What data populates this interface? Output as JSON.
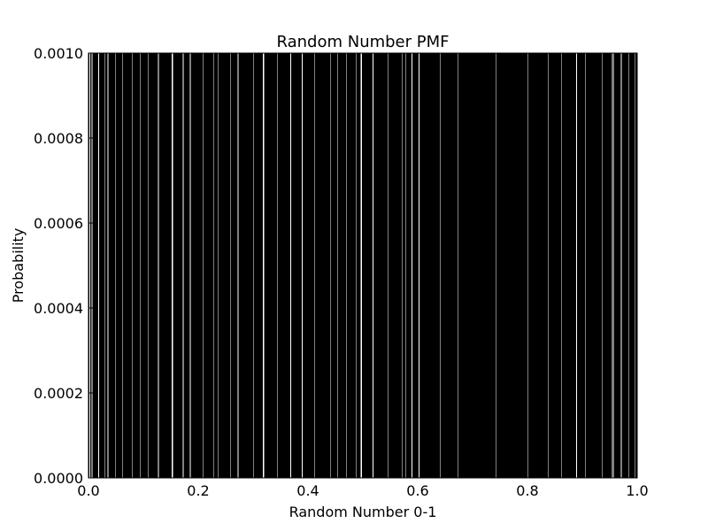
{
  "chart_data": {
    "type": "bar",
    "title": "Random Number PMF",
    "xlabel": "Random Number 0-1",
    "ylabel": "Probability",
    "xlim": [
      0.0,
      1.0
    ],
    "ylim": [
      0.0,
      0.001
    ],
    "x_ticks": [
      "0.0",
      "0.2",
      "0.4",
      "0.6",
      "0.8",
      "1.0"
    ],
    "y_ticks": [
      "0.0000",
      "0.0002",
      "0.0004",
      "0.0006",
      "0.0008",
      "0.0010"
    ],
    "grid": false,
    "bar_color": "#000000",
    "bar_value": 0.001,
    "gap_value": 0.0,
    "empty_x": [
      0.002,
      0.006,
      0.018,
      0.029,
      0.035,
      0.048,
      0.061,
      0.079,
      0.094,
      0.109,
      0.127,
      0.152,
      0.153,
      0.172,
      0.185,
      0.209,
      0.228,
      0.236,
      0.259,
      0.272,
      0.301,
      0.318,
      0.319,
      0.344,
      0.368,
      0.389,
      0.412,
      0.441,
      0.454,
      0.469,
      0.487,
      0.496,
      0.497,
      0.518,
      0.545,
      0.571,
      0.578,
      0.589,
      0.602,
      0.641,
      0.673,
      0.742,
      0.801,
      0.838,
      0.862,
      0.889,
      0.905,
      0.936,
      0.953,
      0.955,
      0.957,
      0.969,
      0.971,
      0.984,
      0.996
    ]
  }
}
